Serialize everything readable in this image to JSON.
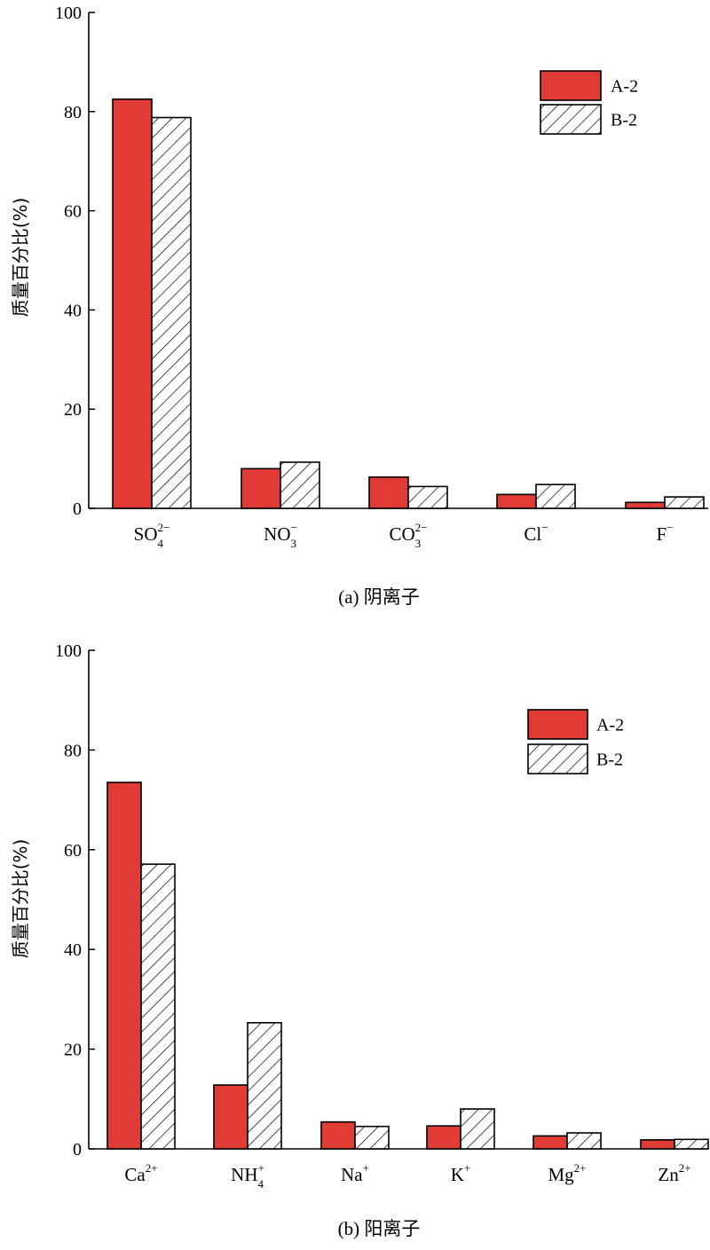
{
  "chart_data": [
    {
      "type": "bar",
      "ylabel": "质量百分比(%)",
      "caption": "(a) 阴离子",
      "ylim": [
        0,
        100
      ],
      "yticks": [
        "0",
        "20",
        "40",
        "60",
        "80",
        "100"
      ],
      "categories": [
        {
          "base": "SO",
          "sub": "4",
          "sup": "2−"
        },
        {
          "base": "NO",
          "sub": "3",
          "sup": "−"
        },
        {
          "base": "CO",
          "sub": "3",
          "sup": "2−"
        },
        {
          "base": "Cl",
          "sub": "",
          "sup": "−"
        },
        {
          "base": "F",
          "sub": "",
          "sup": "−"
        }
      ],
      "series": [
        {
          "name": "A-2",
          "values": [
            82.5,
            8.0,
            6.3,
            2.8,
            1.2
          ]
        },
        {
          "name": "B-2",
          "values": [
            78.8,
            9.3,
            4.4,
            4.8,
            2.3
          ]
        }
      ],
      "legend_position": "top-right"
    },
    {
      "type": "bar",
      "ylabel": "质量百分比(%)",
      "caption": "(b) 阳离子",
      "ylim": [
        0,
        100
      ],
      "yticks": [
        "0",
        "20",
        "40",
        "60",
        "80",
        "100"
      ],
      "categories": [
        {
          "base": "Ca",
          "sub": "",
          "sup": "2+"
        },
        {
          "base": "NH",
          "sub": "4",
          "sup": "+"
        },
        {
          "base": "Na",
          "sub": "",
          "sup": "+"
        },
        {
          "base": "K",
          "sub": "",
          "sup": "+"
        },
        {
          "base": "Mg",
          "sub": "",
          "sup": "2+"
        },
        {
          "base": "Zn",
          "sub": "",
          "sup": "2+"
        }
      ],
      "series": [
        {
          "name": "A-2",
          "values": [
            73.5,
            12.8,
            5.4,
            4.6,
            2.6,
            1.8
          ]
        },
        {
          "name": "B-2",
          "values": [
            57.1,
            25.3,
            4.5,
            8.0,
            3.2,
            1.9
          ]
        }
      ],
      "legend_position": "top-right"
    }
  ],
  "colors": {
    "series_a": "#e03c35",
    "axis": "#000000",
    "hatch_bg": "#ffffff"
  }
}
